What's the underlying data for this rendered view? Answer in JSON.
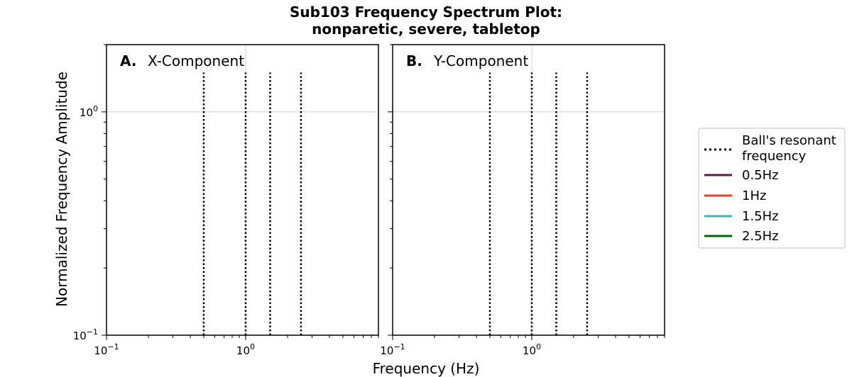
{
  "figure": {
    "title_line1": "Sub103 Frequency Spectrum Plot:",
    "title_line2": "nonparetic, severe, tabletop",
    "xlabel": "Frequency (Hz)",
    "ylabel": "Normalized Frequency Amplitude"
  },
  "chart_data": [
    {
      "type": "line",
      "panel_letter": "A.",
      "panel_label": "X-Component",
      "xscale": "log",
      "yscale": "log",
      "xlim": [
        0.1,
        9.0
      ],
      "ylim": [
        0.1,
        2.0
      ],
      "x_ticks": [
        {
          "value": 0.1,
          "base": "10",
          "exp": "−1"
        },
        {
          "value": 1,
          "base": "10",
          "exp": "0"
        }
      ],
      "y_ticks": [
        {
          "value": 0.1,
          "base": "10",
          "exp": "−1"
        },
        {
          "value": 1,
          "base": "10",
          "exp": "0"
        }
      ],
      "grid": true,
      "vlines": {
        "name": "Ball's resonant frequency",
        "x": [
          0.5,
          1.0,
          1.5,
          2.5
        ],
        "y_range": [
          0.1,
          1.5
        ]
      },
      "series": [
        {
          "name": "0.5Hz",
          "x": [],
          "y": []
        },
        {
          "name": "1Hz",
          "x": [],
          "y": []
        },
        {
          "name": "1.5Hz",
          "x": [],
          "y": []
        },
        {
          "name": "2.5Hz",
          "x": [],
          "y": []
        }
      ]
    },
    {
      "type": "line",
      "panel_letter": "B.",
      "panel_label": "Y-Component",
      "xscale": "log",
      "yscale": "log",
      "xlim": [
        0.1,
        9.0
      ],
      "ylim": [
        0.1,
        2.0
      ],
      "x_ticks": [
        {
          "value": 0.1,
          "base": "10",
          "exp": "−1"
        },
        {
          "value": 1,
          "base": "10",
          "exp": "0"
        }
      ],
      "y_ticks": [],
      "grid": true,
      "vlines": {
        "name": "Ball's resonant frequency",
        "x": [
          0.5,
          1.0,
          1.5,
          2.5
        ],
        "y_range": [
          0.1,
          1.5
        ]
      },
      "series": [
        {
          "name": "0.5Hz",
          "x": [],
          "y": []
        },
        {
          "name": "1Hz",
          "x": [],
          "y": []
        },
        {
          "name": "1.5Hz",
          "x": [],
          "y": []
        },
        {
          "name": "2.5Hz",
          "x": [],
          "y": []
        }
      ]
    }
  ],
  "legend": {
    "placement": "right",
    "entries": [
      {
        "label_line1": "Ball's resonant",
        "label_line2": "frequency",
        "style": "dotted",
        "color": "#000000"
      },
      {
        "label_line1": "0.5Hz",
        "label_line2": "",
        "style": "solid",
        "color": "#5a1a4a"
      },
      {
        "label_line1": "1Hz",
        "label_line2": "",
        "style": "solid",
        "color": "#e8412c"
      },
      {
        "label_line1": "1.5Hz",
        "label_line2": "",
        "style": "solid",
        "color": "#4bb0b8"
      },
      {
        "label_line1": "2.5Hz",
        "label_line2": "",
        "style": "solid",
        "color": "#006400"
      }
    ]
  }
}
